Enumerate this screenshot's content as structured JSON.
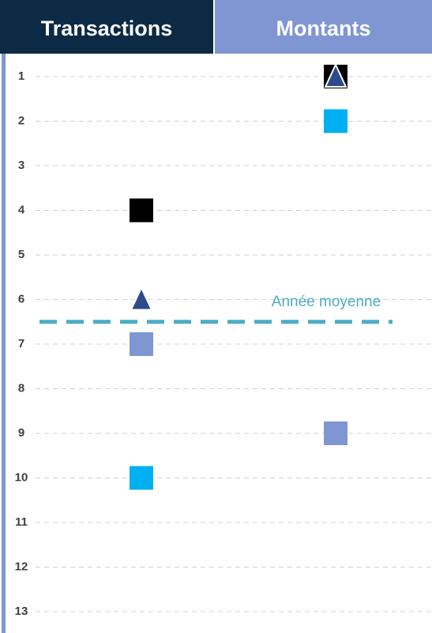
{
  "chart_data": {
    "type": "scatter",
    "categories": [
      "Transactions",
      "Montants"
    ],
    "header_colors": [
      "#0d2a45",
      "#7f96d3"
    ],
    "ylim": [
      1,
      13
    ],
    "y_inverted": true,
    "yticks": [
      1,
      2,
      3,
      4,
      5,
      6,
      7,
      8,
      9,
      10,
      11,
      12,
      13
    ],
    "grid": true,
    "series": [
      {
        "color": "#000000",
        "marker": "square",
        "values": [
          4,
          1
        ]
      },
      {
        "color": "#2e4a8c",
        "marker": "triangle",
        "values": [
          6,
          1
        ]
      },
      {
        "color": "#7f96d3",
        "marker": "square",
        "values": [
          7,
          9
        ]
      },
      {
        "color": "#00b0f0",
        "marker": "square",
        "values": [
          10,
          2
        ]
      }
    ],
    "average": {
      "value": 6.5,
      "label": "Année moyenne",
      "color": "#4bacc6"
    }
  }
}
